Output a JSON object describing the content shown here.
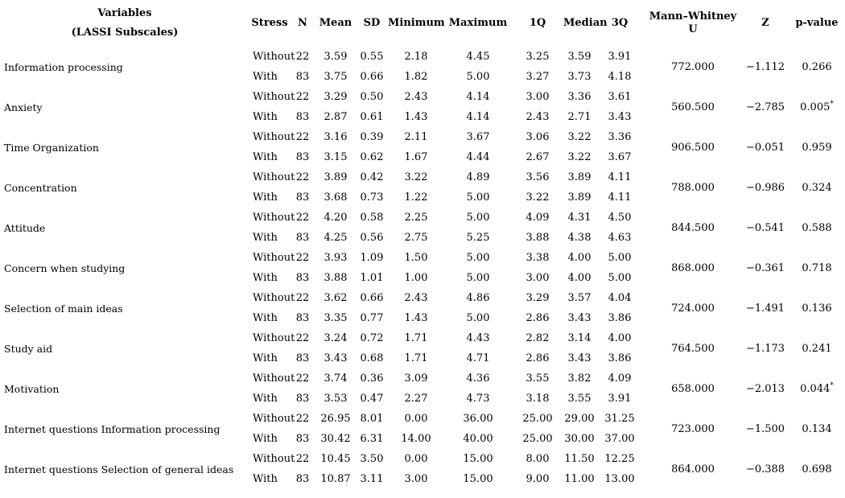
{
  "table": {
    "title_column": {
      "line1": "Variables",
      "line2": "(LASSI Subscales)"
    },
    "columns": [
      "Stress",
      "N",
      "Mean",
      "SD",
      "Minimum",
      "Maximum",
      "1Q",
      "Median",
      "3Q",
      "Mann–Whitney U",
      "Z",
      "p-value"
    ],
    "stress_labels": [
      "Without",
      "With"
    ],
    "significance_marker": "*",
    "rows": [
      {
        "variable": "Information processing",
        "without": {
          "n": "22",
          "mean": "3.59",
          "sd": "0.55",
          "min": "2.18",
          "max": "4.45",
          "q1": "3.25",
          "median": "3.59",
          "q3": "3.91"
        },
        "with": {
          "n": "83",
          "mean": "3.75",
          "sd": "0.66",
          "min": "1.82",
          "max": "5.00",
          "q1": "3.27",
          "median": "3.73",
          "q3": "4.18"
        },
        "mann_whitney_u": "772.000",
        "z": "−1.112",
        "p_value": "0.266",
        "significant": false
      },
      {
        "variable": "Anxiety",
        "without": {
          "n": "22",
          "mean": "3.29",
          "sd": "0.50",
          "min": "2.43",
          "max": "4.14",
          "q1": "3.00",
          "median": "3.36",
          "q3": "3.61"
        },
        "with": {
          "n": "83",
          "mean": "2.87",
          "sd": "0.61",
          "min": "1.43",
          "max": "4.14",
          "q1": "2.43",
          "median": "2.71",
          "q3": "3.43"
        },
        "mann_whitney_u": "560.500",
        "z": "−2.785",
        "p_value": "0.005",
        "significant": true
      },
      {
        "variable": "Time Organization",
        "without": {
          "n": "22",
          "mean": "3.16",
          "sd": "0.39",
          "min": "2.11",
          "max": "3.67",
          "q1": "3.06",
          "median": "3.22",
          "q3": "3.36"
        },
        "with": {
          "n": "83",
          "mean": "3.15",
          "sd": "0.62",
          "min": "1.67",
          "max": "4.44",
          "q1": "2.67",
          "median": "3.22",
          "q3": "3.67"
        },
        "mann_whitney_u": "906.500",
        "z": "−0.051",
        "p_value": "0.959",
        "significant": false
      },
      {
        "variable": "Concentration",
        "without": {
          "n": "22",
          "mean": "3.89",
          "sd": "0.42",
          "min": "3.22",
          "max": "4.89",
          "q1": "3.56",
          "median": "3.89",
          "q3": "4.11"
        },
        "with": {
          "n": "83",
          "mean": "3.68",
          "sd": "0.73",
          "min": "1.22",
          "max": "5.00",
          "q1": "3.22",
          "median": "3.89",
          "q3": "4.11"
        },
        "mann_whitney_u": "788.000",
        "z": "−0.986",
        "p_value": "0.324",
        "significant": false
      },
      {
        "variable": "Attitude",
        "without": {
          "n": "22",
          "mean": "4.20",
          "sd": "0.58",
          "min": "2.25",
          "max": "5.00",
          "q1": "4.09",
          "median": "4.31",
          "q3": "4.50"
        },
        "with": {
          "n": "83",
          "mean": "4.25",
          "sd": "0.56",
          "min": "2.75",
          "max": "5.25",
          "q1": "3.88",
          "median": "4.38",
          "q3": "4.63"
        },
        "mann_whitney_u": "844.500",
        "z": "−0.541",
        "p_value": "0.588",
        "significant": false
      },
      {
        "variable": "Concern when studying",
        "without": {
          "n": "22",
          "mean": "3.93",
          "sd": "1.09",
          "min": "1.50",
          "max": "5.00",
          "q1": "3.38",
          "median": "4.00",
          "q3": "5.00"
        },
        "with": {
          "n": "83",
          "mean": "3.88",
          "sd": "1.01",
          "min": "1.00",
          "max": "5.00",
          "q1": "3.00",
          "median": "4.00",
          "q3": "5.00"
        },
        "mann_whitney_u": "868.000",
        "z": "−0.361",
        "p_value": "0.718",
        "significant": false
      },
      {
        "variable": "Selection of main ideas",
        "without": {
          "n": "22",
          "mean": "3.62",
          "sd": "0.66",
          "min": "2.43",
          "max": "4.86",
          "q1": "3.29",
          "median": "3.57",
          "q3": "4.04"
        },
        "with": {
          "n": "83",
          "mean": "3.35",
          "sd": "0.77",
          "min": "1.43",
          "max": "5.00",
          "q1": "2.86",
          "median": "3.43",
          "q3": "3.86"
        },
        "mann_whitney_u": "724.000",
        "z": "−1.491",
        "p_value": "0.136",
        "significant": false
      },
      {
        "variable": "Study aid",
        "without": {
          "n": "22",
          "mean": "3.24",
          "sd": "0.72",
          "min": "1.71",
          "max": "4.43",
          "q1": "2.82",
          "median": "3.14",
          "q3": "4.00"
        },
        "with": {
          "n": "83",
          "mean": "3.43",
          "sd": "0.68",
          "min": "1.71",
          "max": "4.71",
          "q1": "2.86",
          "median": "3.43",
          "q3": "3.86"
        },
        "mann_whitney_u": "764.500",
        "z": "−1.173",
        "p_value": "0.241",
        "significant": false
      },
      {
        "variable": "Motivation",
        "without": {
          "n": "22",
          "mean": "3.74",
          "sd": "0.36",
          "min": "3.09",
          "max": "4.36",
          "q1": "3.55",
          "median": "3.82",
          "q3": "4.09"
        },
        "with": {
          "n": "83",
          "mean": "3.53",
          "sd": "0.47",
          "min": "2.27",
          "max": "4.73",
          "q1": "3.18",
          "median": "3.55",
          "q3": "3.91"
        },
        "mann_whitney_u": "658.000",
        "z": "−2.013",
        "p_value": "0.044",
        "significant": true
      },
      {
        "variable": "Internet questions Information processing",
        "without": {
          "n": "22",
          "mean": "26.95",
          "sd": "8.01",
          "min": "0.00",
          "max": "36.00",
          "q1": "25.00",
          "median": "29.00",
          "q3": "31.25"
        },
        "with": {
          "n": "83",
          "mean": "30.42",
          "sd": "6.31",
          "min": "14.00",
          "max": "40.00",
          "q1": "25.00",
          "median": "30.00",
          "q3": "37.00"
        },
        "mann_whitney_u": "723.000",
        "z": "−1.500",
        "p_value": "0.134",
        "significant": false
      },
      {
        "variable": "Internet questions Selection of general ideas",
        "without": {
          "n": "22",
          "mean": "10.45",
          "sd": "3.50",
          "min": "0.00",
          "max": "15.00",
          "q1": "8.00",
          "median": "11.50",
          "q3": "12.25"
        },
        "with": {
          "n": "83",
          "mean": "10.87",
          "sd": "3.11",
          "min": "3.00",
          "max": "15.00",
          "q1": "9.00",
          "median": "11.00",
          "q3": "13.00"
        },
        "mann_whitney_u": "864.000",
        "z": "−0.388",
        "p_value": "0.698",
        "significant": false
      }
    ]
  }
}
